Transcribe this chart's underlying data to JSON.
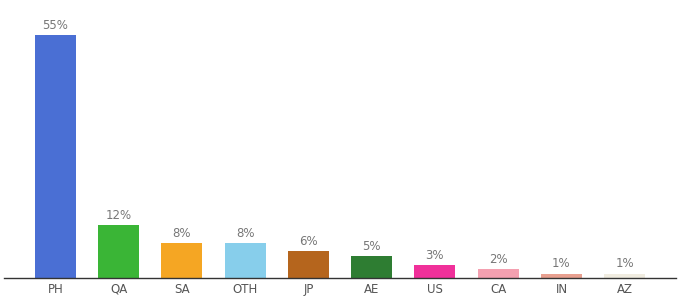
{
  "categories": [
    "PH",
    "QA",
    "SA",
    "OTH",
    "JP",
    "AE",
    "US",
    "CA",
    "IN",
    "AZ"
  ],
  "values": [
    55,
    12,
    8,
    8,
    6,
    5,
    3,
    2,
    1,
    1
  ],
  "bar_colors": [
    "#4a6fd4",
    "#3ab536",
    "#f5a623",
    "#87ceeb",
    "#b5651d",
    "#2e7d32",
    "#f0309a",
    "#f4a0b0",
    "#e8a090",
    "#f0ece0"
  ],
  "title": "",
  "label_fontsize": 8.5,
  "tick_fontsize": 8.5,
  "ylim": [
    0,
    62
  ],
  "background_color": "#ffffff",
  "label_color": "#777777",
  "tick_color": "#555555",
  "spine_color": "#333333"
}
